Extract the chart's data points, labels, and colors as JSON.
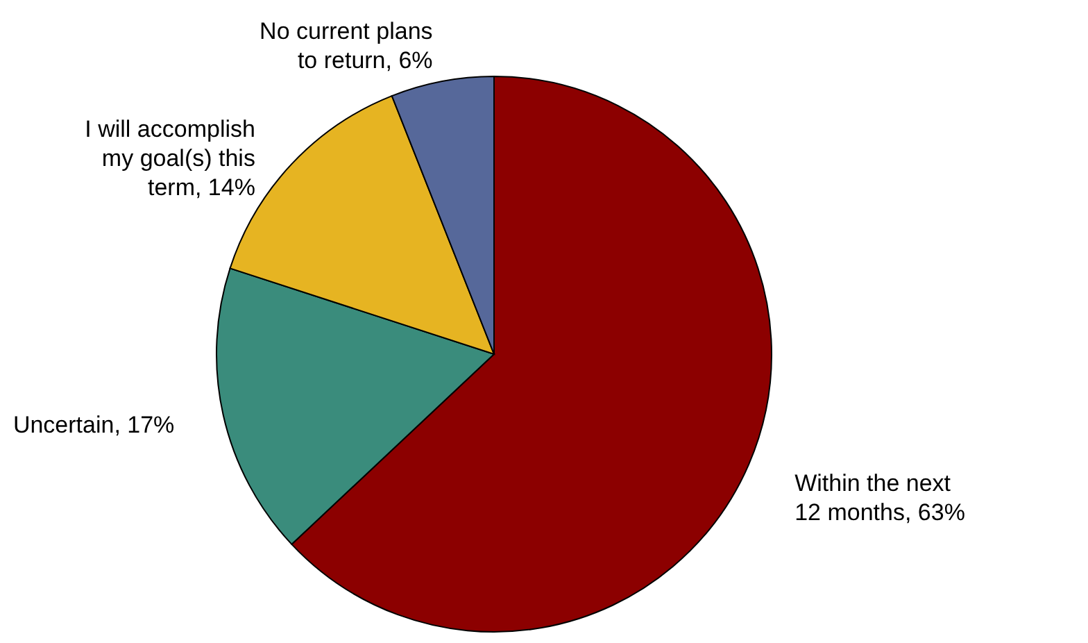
{
  "chart_data": {
    "type": "pie",
    "categories": [
      "Within the next 12 months",
      "Uncertain",
      "I will accomplish my goal(s) this term",
      "No current plans to return"
    ],
    "values": [
      63,
      17,
      14,
      6
    ],
    "colors": [
      "#8c0000",
      "#3a8c7c",
      "#e6b422",
      "#56689a"
    ],
    "value_labels": [
      "63%",
      "17%",
      "14%",
      "6%"
    ]
  }
}
